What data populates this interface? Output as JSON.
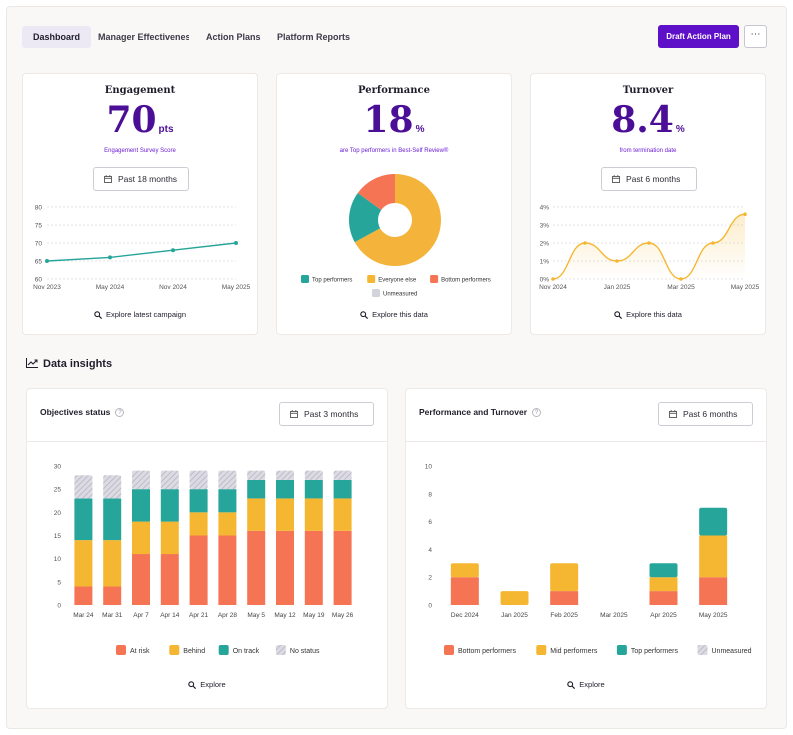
{
  "tabs": [
    "Dashboard",
    "Manager Effectiveness",
    "Action Plans",
    "Platform Reports"
  ],
  "actions": {
    "draft_label": "Draft Action Plan",
    "more_label": "⋯"
  },
  "icons": [
    "calendar-icon",
    "search-icon",
    "trend-chart-icon",
    "info-icon",
    "more-icon"
  ],
  "colors": {
    "accent": "#5e10c9",
    "kpi": "#4b0e96",
    "teal": "#26a59a",
    "amber": "#f5b731",
    "coral": "#f47454",
    "orange": "#f4b33a",
    "grey": "#d3d3dc"
  },
  "kpis": [
    {
      "title": "Engagement",
      "value": "70",
      "unit": "pts",
      "subtitle": "Engagement Survey Score",
      "range": "Past 18 months",
      "explore": "Explore latest campaign"
    },
    {
      "title": "Performance",
      "value": "18",
      "unit": "%",
      "subtitle": "are Top performers in Best-Self Review®",
      "explore": "Explore this data"
    },
    {
      "title": "Turnover",
      "value": "8.4",
      "unit": "%",
      "subtitle": "from termination date",
      "range": "Past 6 months",
      "explore": "Explore this data"
    }
  ],
  "insights": {
    "title": "Data insights"
  },
  "objectives_panel": {
    "title": "Objectives status",
    "range": "Past 3 months",
    "explore": "Explore"
  },
  "perf_turnover_panel": {
    "title": "Performance and Turnover",
    "range": "Past 6 months",
    "explore": "Explore"
  },
  "chart_data": [
    {
      "type": "line",
      "title": "Engagement",
      "x": [
        "Nov 2023",
        "May 2024",
        "Nov 2024",
        "May 2025"
      ],
      "xticks": [
        "Nov 2023",
        "May 2024",
        "Nov 2024",
        "May 2025"
      ],
      "values": [
        65,
        66,
        68,
        70
      ],
      "ylim": [
        60,
        80
      ],
      "yticks": [
        60,
        65,
        70,
        75,
        80
      ],
      "grid": true
    },
    {
      "type": "pie",
      "title": "Performance",
      "donut": true,
      "labels": [
        "Top performers",
        "Everyone else",
        "Bottom performers"
      ],
      "values": [
        18,
        67,
        15
      ],
      "legend": [
        "Top performers",
        "Everyone else",
        "Bottom performers",
        "Unmeasured"
      ]
    },
    {
      "type": "line",
      "title": "Turnover",
      "values": [
        0,
        2,
        1,
        2,
        0,
        2,
        3.6
      ],
      "xticks": [
        "Nov 2024",
        "Jan 2025",
        "Mar 2025",
        "May 2025"
      ],
      "yticks": [
        "0%",
        "1%",
        "2%",
        "3%",
        "4%"
      ],
      "ylim": [
        0,
        4
      ],
      "grid": true
    },
    {
      "type": "bar",
      "stacked": true,
      "title": "Objectives status",
      "categories": [
        "Mar 24",
        "Mar 31",
        "Apr 7",
        "Apr 14",
        "Apr 21",
        "Apr 28",
        "May 5",
        "May 12",
        "May 19",
        "May 26"
      ],
      "series": [
        {
          "name": "At risk",
          "values": [
            4,
            4,
            11,
            11,
            15,
            15,
            16,
            16,
            16,
            16
          ]
        },
        {
          "name": "Behind",
          "values": [
            10,
            10,
            7,
            7,
            5,
            5,
            7,
            7,
            7,
            7
          ]
        },
        {
          "name": "On track",
          "values": [
            9,
            9,
            7,
            7,
            5,
            5,
            4,
            4,
            4,
            4
          ]
        },
        {
          "name": "No status",
          "values": [
            5,
            5,
            4,
            4,
            4,
            4,
            2,
            2,
            2,
            2
          ]
        }
      ],
      "ylim": [
        0,
        30
      ],
      "yticks": [
        0,
        5,
        10,
        15,
        20,
        25,
        30
      ]
    },
    {
      "type": "bar",
      "stacked": true,
      "title": "Performance and Turnover",
      "categories": [
        "Dec 2024",
        "Jan 2025",
        "Feb 2025",
        "Mar 2025",
        "Apr 2025",
        "May 2025"
      ],
      "series": [
        {
          "name": "Bottom performers",
          "values": [
            2,
            0,
            1,
            0,
            1,
            2
          ]
        },
        {
          "name": "Mid performers",
          "values": [
            1,
            1,
            2,
            0,
            1,
            3
          ]
        },
        {
          "name": "Top performers",
          "values": [
            0,
            0,
            0,
            0,
            1,
            2
          ]
        },
        {
          "name": "Unmeasured",
          "values": [
            0,
            0,
            0,
            0,
            0,
            0
          ]
        }
      ],
      "ylim": [
        0,
        10
      ],
      "yticks": [
        0,
        2,
        4,
        6,
        8,
        10
      ]
    }
  ]
}
